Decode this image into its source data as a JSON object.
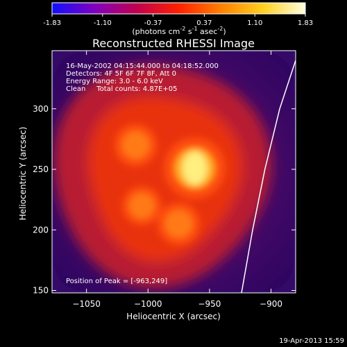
{
  "colorbar": {
    "ticks": [
      "-1.83",
      "-1.10",
      "-0.37",
      "0.37",
      "1.10",
      "1.83"
    ],
    "tick_values": [
      -1.83,
      -1.1,
      -0.37,
      0.37,
      1.1,
      1.83
    ],
    "units_text": "(photons cm",
    "units_sup1": "-2",
    "units_mid": " s",
    "units_sup2": "-1",
    "units_mid2": " asec",
    "units_sup3": "-2",
    "units_end": ")",
    "colors": [
      "#1010ff",
      "#8000c0",
      "#c00050",
      "#ff2000",
      "#ff8000",
      "#ffd020",
      "#ffffe0"
    ]
  },
  "chart_data": {
    "type": "heatmap",
    "title": "Reconstructed RHESSI Image",
    "xlabel": "Heliocentric X (arcsec)",
    "ylabel": "Heliocentric Y (arcsec)",
    "xlim": [
      -1078,
      -880
    ],
    "ylim": [
      148,
      348
    ],
    "xticks": [
      -1050,
      -1000,
      -950,
      -900
    ],
    "xtick_labels": [
      "−1050",
      "−1000",
      "−950",
      "−900"
    ],
    "yticks": [
      150,
      200,
      250,
      300
    ],
    "ytick_labels": [
      "150",
      "200",
      "250",
      "300"
    ],
    "info_lines": [
      "16-May-2002 04:15:44.000 to 04:18:52.000",
      "Detectors: 4F 5F 6F 7F 8F, Att 0",
      "Energy Range: 3.0 - 6.0 keV",
      "Clean     Total counts: 4.87E+05"
    ],
    "peak_label": "Position of Peak = [-963,249]",
    "peak": [
      -963,
      249
    ],
    "sources": [
      {
        "x": -962,
        "y": 251,
        "intensity": 1.0
      },
      {
        "x": -1010,
        "y": 270,
        "intensity": 0.62
      },
      {
        "x": -975,
        "y": 205,
        "intensity": 0.62
      },
      {
        "x": -1005,
        "y": 220,
        "intensity": 0.55
      }
    ],
    "limb": [
      [
        -924,
        148
      ],
      [
        -915,
        200
      ],
      [
        -905,
        250
      ],
      [
        -893,
        300
      ],
      [
        -880,
        340
      ]
    ],
    "grid": false
  },
  "footer": {
    "date": "19-Apr-2013 15:59"
  }
}
